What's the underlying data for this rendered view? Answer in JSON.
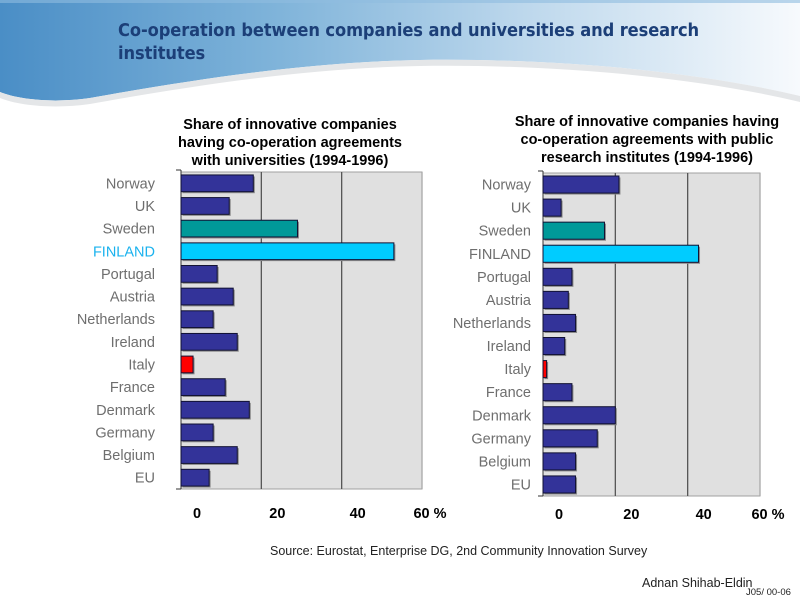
{
  "slide": {
    "title": "Co-operation between companies and universities and research institutes",
    "source": "Source: Eurostat, Enterprise DG, 2nd Community Innovation Survey",
    "author": "Adnan Shihab-Eldin",
    "code": "J05/ 00-06"
  },
  "colors": {
    "default_bar": "#333399",
    "sweden_bar": "#009999",
    "finland_bar": "#00ccff",
    "italy_bar": "#ff0000",
    "plot_bg": "#e0e0e0",
    "label_gray": "#6e6e6e",
    "finland_label_highlight": "#1ab2ee",
    "title_navy": "#1c3f78"
  },
  "chart_data": [
    {
      "type": "bar",
      "orientation": "horizontal",
      "title": "Share of innovative companies having co-operation agreements with universities (1994-1996)",
      "title_lines": [
        "Share of innovative companies",
        "having co-operation agreements",
        "with universities (1994-1996)"
      ],
      "categories": [
        "Norway",
        "UK",
        "Sweden",
        "FINLAND",
        "Portugal",
        "Austria",
        "Netherlands",
        "Ireland",
        "Italy",
        "France",
        "Denmark",
        "Germany",
        "Belgium",
        "EU"
      ],
      "values": [
        18,
        12,
        29,
        53,
        9,
        13,
        8,
        14,
        3,
        11,
        17,
        8,
        14,
        7
      ],
      "bar_colors": [
        "#333399",
        "#333399",
        "#009999",
        "#00ccff",
        "#333399",
        "#333399",
        "#333399",
        "#333399",
        "#ff0000",
        "#333399",
        "#333399",
        "#333399",
        "#333399",
        "#333399"
      ],
      "highlight_label": "FINLAND",
      "xlabel": "%",
      "xticks": [
        "0",
        "20",
        "40",
        "60 %"
      ],
      "xtick_values": [
        0,
        20,
        40,
        60
      ],
      "xlim": [
        0,
        60
      ],
      "grid": true
    },
    {
      "type": "bar",
      "orientation": "horizontal",
      "title": "Share of innovative companies having co-operation agreements with public research institutes (1994-1996)",
      "title_lines": [
        "Share of innovative companies having",
        "co-operation agreements with public",
        "research institutes (1994-1996)"
      ],
      "categories": [
        "Norway",
        "UK",
        "Sweden",
        "FINLAND",
        "Portugal",
        "Austria",
        "Netherlands",
        "Ireland",
        "Italy",
        "France",
        "Denmark",
        "Germany",
        "Belgium",
        "EU"
      ],
      "values": [
        21,
        5,
        17,
        43,
        8,
        7,
        9,
        6,
        1,
        8,
        20,
        15,
        9,
        9
      ],
      "bar_colors": [
        "#333399",
        "#333399",
        "#009999",
        "#00ccff",
        "#333399",
        "#333399",
        "#333399",
        "#333399",
        "#ff0000",
        "#333399",
        "#333399",
        "#333399",
        "#333399",
        "#333399"
      ],
      "highlight_label": null,
      "xlabel": "%",
      "xticks": [
        "0",
        "20",
        "40",
        "60 %"
      ],
      "xtick_values": [
        0,
        20,
        40,
        60
      ],
      "xlim": [
        0,
        60
      ],
      "grid": true
    }
  ]
}
